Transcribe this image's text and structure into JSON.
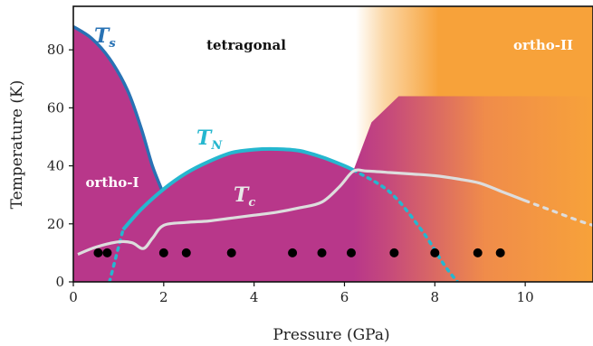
{
  "chart_data": {
    "type": "phase-diagram",
    "title": "",
    "xlabel": "Pressure (GPa)",
    "ylabel": "Temperature (K)",
    "xlim": [
      0,
      11.5
    ],
    "ylim": [
      0,
      95
    ],
    "xticks": [
      0,
      2,
      4,
      6,
      8,
      10
    ],
    "yticks": [
      0,
      20,
      40,
      60,
      80
    ],
    "regions": [
      {
        "name": "tetragonal",
        "color": "#111111"
      },
      {
        "name": "ortho-I",
        "color": "#ffffff"
      },
      {
        "name": "ortho-II",
        "color": "#ffffff"
      }
    ],
    "fill_colors": {
      "magenta": "#b8378a",
      "orange": "#f7a23a",
      "white": "#ffffff"
    },
    "curves": [
      {
        "name": "T",
        "subscript": "s",
        "color": "#2872b4",
        "points": [
          [
            0,
            88
          ],
          [
            0.4,
            84
          ],
          [
            0.8,
            77
          ],
          [
            1.2,
            66
          ],
          [
            1.5,
            53
          ],
          [
            1.75,
            40
          ],
          [
            1.95,
            32
          ]
        ]
      },
      {
        "name": "T",
        "subscript": "N",
        "color": "#25b7cf",
        "solid": [
          [
            1.1,
            18
          ],
          [
            1.5,
            25
          ],
          [
            2.0,
            32
          ],
          [
            2.5,
            37.5
          ],
          [
            3.0,
            41.5
          ],
          [
            3.5,
            44.5
          ],
          [
            4.0,
            45.6
          ],
          [
            4.5,
            45.8
          ],
          [
            5.0,
            45.2
          ],
          [
            5.5,
            43
          ],
          [
            6.0,
            40
          ],
          [
            6.2,
            38.5
          ]
        ],
        "dashed": [
          [
            0.8,
            0
          ],
          [
            1.1,
            18
          ],
          [
            6.2,
            38.5
          ],
          [
            7.0,
            31
          ],
          [
            7.7,
            18
          ],
          [
            8.2,
            6
          ],
          [
            8.5,
            0
          ]
        ]
      },
      {
        "name": "T",
        "subscript": "c",
        "color": "#dddddd",
        "solid": [
          [
            0.1,
            9.5
          ],
          [
            0.5,
            12
          ],
          [
            1.0,
            13.8
          ],
          [
            1.3,
            13.5
          ],
          [
            1.55,
            11.5
          ],
          [
            1.75,
            15
          ],
          [
            2.0,
            19.5
          ],
          [
            2.5,
            20.5
          ],
          [
            3.0,
            21
          ],
          [
            3.5,
            22
          ],
          [
            4.0,
            23
          ],
          [
            4.5,
            24
          ],
          [
            5.0,
            25.5
          ],
          [
            5.5,
            27.5
          ],
          [
            5.9,
            33
          ],
          [
            6.2,
            38.2
          ],
          [
            6.5,
            38.2
          ],
          [
            7.0,
            37.7
          ],
          [
            7.5,
            37.2
          ],
          [
            8.0,
            36.6
          ],
          [
            8.5,
            35.5
          ],
          [
            9.0,
            34
          ],
          [
            9.5,
            31
          ],
          [
            10.0,
            28
          ]
        ],
        "dashed": [
          [
            10.0,
            28
          ],
          [
            10.6,
            24.5
          ],
          [
            11.2,
            21
          ],
          [
            11.5,
            19.5
          ]
        ]
      }
    ],
    "data_points": {
      "color": "#000000",
      "x": [
        0.55,
        0.75,
        2.0,
        2.5,
        3.5,
        4.85,
        5.5,
        6.15,
        7.1,
        8.0,
        8.95,
        9.45
      ],
      "y": [
        10,
        10,
        10,
        10,
        10,
        10,
        10,
        10,
        10,
        10,
        10,
        10
      ]
    }
  }
}
